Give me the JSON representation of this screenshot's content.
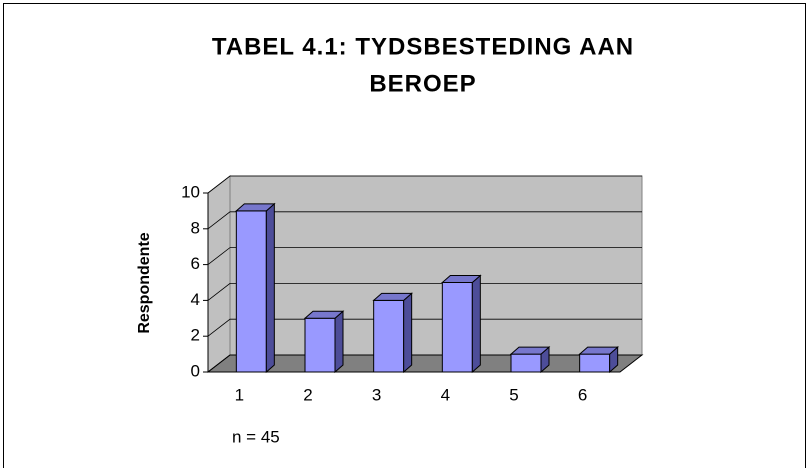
{
  "chart_data": {
    "type": "bar3d",
    "title_lines": [
      "TABEL 4.1: TYDSBESTEDING AAN",
      "BEROEP"
    ],
    "ylabel": "Respondente",
    "annotation": "n = 45",
    "categories": [
      "1",
      "2",
      "3",
      "4",
      "5",
      "6"
    ],
    "values": [
      9,
      3,
      4,
      5,
      1,
      1
    ],
    "color": "#9999ff",
    "ylim": [
      0,
      10
    ],
    "yticks": [
      0,
      2,
      4,
      6,
      8,
      10
    ],
    "grid": true
  }
}
